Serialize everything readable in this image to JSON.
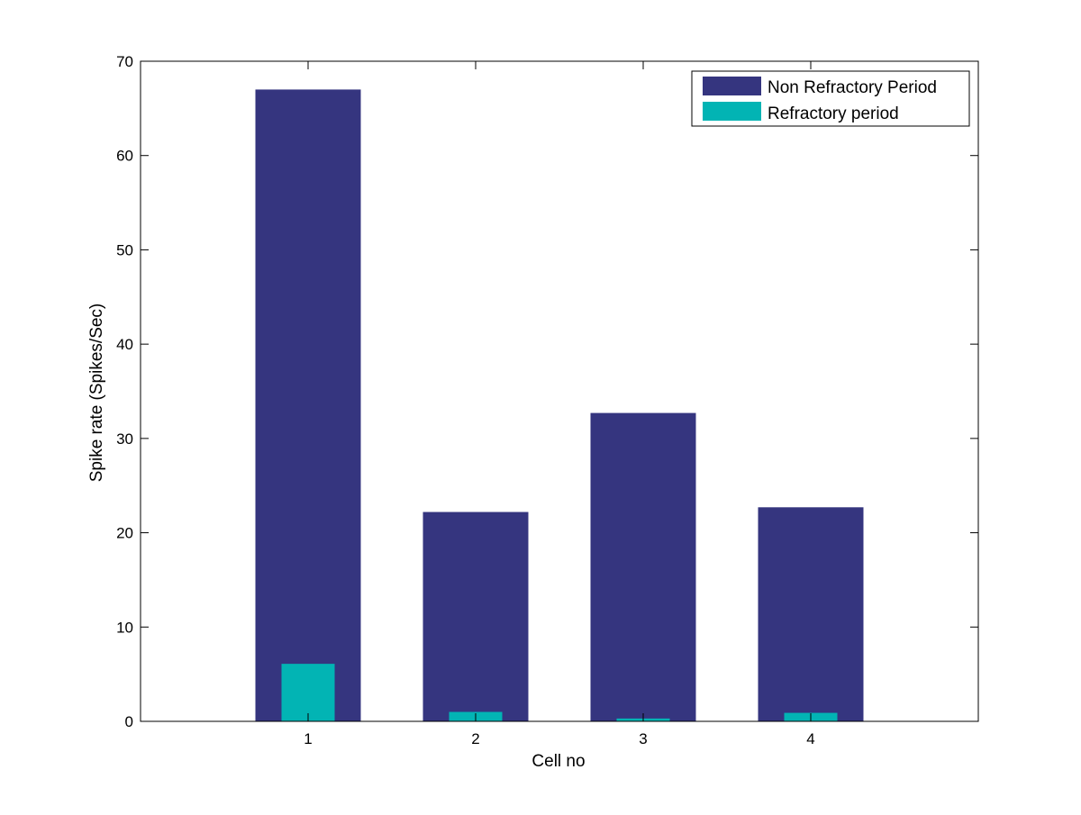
{
  "chart_data": {
    "type": "bar",
    "title": "",
    "xlabel": "Cell no",
    "ylabel": "Spike rate (Spikes/Sec)",
    "categories": [
      "1",
      "2",
      "3",
      "4"
    ],
    "ylim": [
      0,
      70
    ],
    "yticks": [
      0,
      10,
      20,
      30,
      40,
      50,
      60,
      70
    ],
    "grid": false,
    "legend_position": "top-right",
    "series": [
      {
        "name": "Non Refractory Period",
        "color": "#35357f",
        "values": [
          67.0,
          22.2,
          32.7,
          22.7
        ]
      },
      {
        "name": "Refractory period",
        "color": "#02b4b4",
        "values": [
          6.1,
          1.0,
          0.3,
          0.9
        ]
      }
    ]
  }
}
